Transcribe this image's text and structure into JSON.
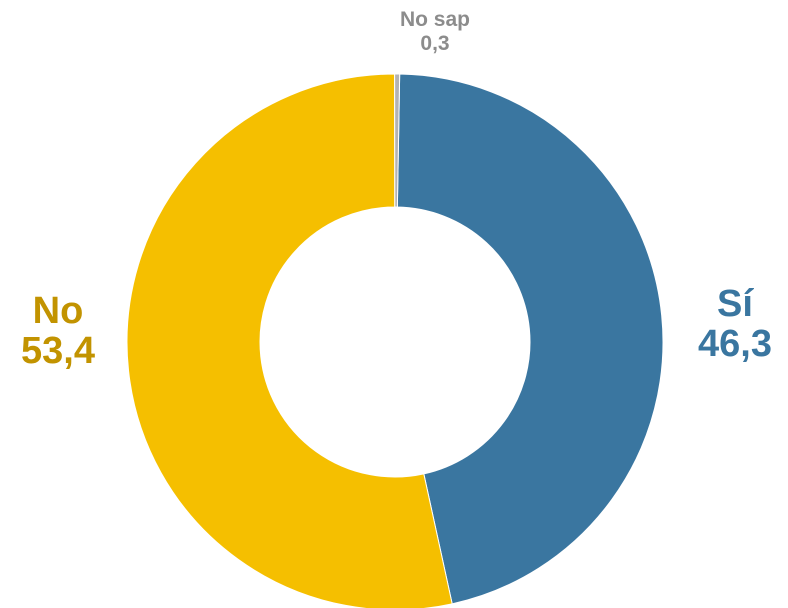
{
  "chart_data": {
    "type": "pie",
    "donut": true,
    "title": "",
    "slices": [
      {
        "label": "Sí",
        "value": 46.3,
        "value_text": "46,3",
        "color": "#3a76a0",
        "label_color": "#3a76a0"
      },
      {
        "label": "No",
        "value": 53.4,
        "value_text": "53,4",
        "color": "#f5bf00",
        "label_color": "#c29300"
      },
      {
        "label": "No sap",
        "value": 0.3,
        "value_text": "0,3",
        "color": "#b3b3b3",
        "label_color": "#8c8c8c"
      }
    ],
    "start": "top, clockwise",
    "legend": "none"
  }
}
